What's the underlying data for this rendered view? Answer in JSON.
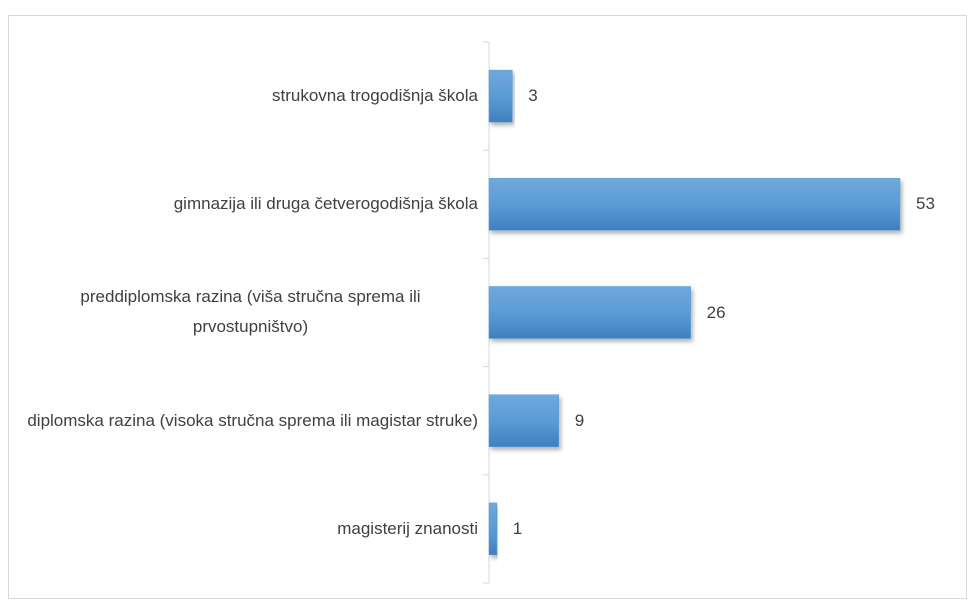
{
  "chart_data": {
    "type": "bar",
    "orientation": "horizontal",
    "categories": [
      "strukovna trogodišnja škola",
      "gimnazija ili druga četverogodišnja škola",
      "preddiplomska razina (viša stručna sprema ili prvostupništvo)",
      "diplomska razina (visoka stručna sprema ili magistar struke)",
      "magisterij znanosti"
    ],
    "values": [
      3,
      53,
      26,
      9,
      1
    ],
    "color": "#5b9bd5"
  }
}
